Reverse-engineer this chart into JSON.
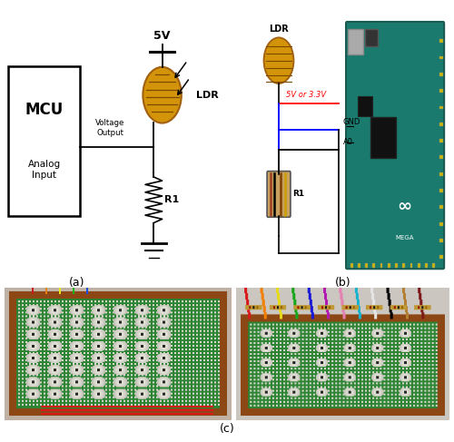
{
  "label_a": "(a)",
  "label_b": "(b)",
  "label_c": "(c)",
  "background_color": "#ffffff",
  "figure_width": 5.0,
  "figure_height": 4.87,
  "dpi": 100,
  "ldr_body_color": "#D4940A",
  "ldr_line_color": "#7a4a00",
  "ldr_edge_color": "#a06010",
  "wire_color": "#000000",
  "mcu_text": "MCU",
  "analog_text": "Analog\nInput",
  "voltage_text": "Voltage\nOutput",
  "ldr_label": "LDR",
  "r1_label": "R1",
  "vcc_label": "5V",
  "gnd_label": "GND",
  "ao_label": "A0",
  "vcc2_label": "5V or 3.3V",
  "arduino_teal": "#1a7a6e",
  "pcb_green": "#2a7a30",
  "pcb_brown": "#8B4010"
}
